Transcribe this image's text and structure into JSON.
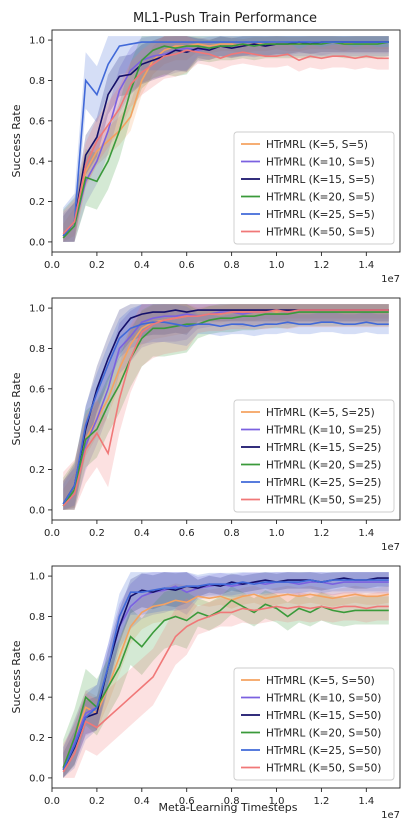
{
  "figure": {
    "title": "ML1-Push Train Performance",
    "xlabel": "Meta-Learning Timesteps"
  },
  "chart_data": [
    {
      "type": "line",
      "title": "ML1-Push Train Performance",
      "xlabel": "",
      "ylabel": "Success Rate",
      "x_exponent": "1e7",
      "xlim": [
        0,
        1.55
      ],
      "ylim": [
        -0.05,
        1.05
      ],
      "xticks": [
        "0.0",
        "0.2",
        "0.4",
        "0.6",
        "0.8",
        "1.0",
        "1.2",
        "1.4"
      ],
      "yticks": [
        "0.0",
        "0.2",
        "0.4",
        "0.6",
        "0.8",
        "1.0"
      ],
      "legend": "lower-right",
      "x": [
        0.05,
        0.1,
        0.15,
        0.2,
        0.25,
        0.3,
        0.35,
        0.4,
        0.45,
        0.5,
        0.55,
        0.6,
        0.65,
        0.7,
        0.75,
        0.8,
        0.85,
        0.9,
        0.95,
        1.0,
        1.05,
        1.1,
        1.15,
        1.2,
        1.25,
        1.3,
        1.35,
        1.4,
        1.45,
        1.5
      ],
      "series": [
        {
          "name": "HTrMRL (K=5, S=5)",
          "color": "#f4a261",
          "band": 0.05,
          "values": [
            0.02,
            0.1,
            0.35,
            0.45,
            0.5,
            0.55,
            0.62,
            0.8,
            0.9,
            0.95,
            0.97,
            0.97,
            0.98,
            0.97,
            0.98,
            0.98,
            0.97,
            0.98,
            0.98,
            0.99,
            0.98,
            0.98,
            0.99,
            0.99,
            0.99,
            0.98,
            0.99,
            0.99,
            0.99,
            0.99
          ]
        },
        {
          "name": "HTrMRL (K=10, S=5)",
          "color": "#7b61e0",
          "band": 0.08,
          "values": [
            0.03,
            0.08,
            0.3,
            0.4,
            0.55,
            0.75,
            0.85,
            0.9,
            0.92,
            0.93,
            0.95,
            0.96,
            0.95,
            0.96,
            0.97,
            0.97,
            0.98,
            0.97,
            0.98,
            0.98,
            0.98,
            0.99,
            0.99,
            0.98,
            0.99,
            0.99,
            0.99,
            0.99,
            0.99,
            0.99
          ]
        },
        {
          "name": "HTrMRL (K=15, S=5)",
          "color": "#14106a",
          "band": 0.07,
          "values": [
            0.03,
            0.1,
            0.43,
            0.52,
            0.73,
            0.82,
            0.83,
            0.88,
            0.9,
            0.92,
            0.95,
            0.94,
            0.96,
            0.95,
            0.97,
            0.96,
            0.97,
            0.98,
            0.97,
            0.98,
            0.98,
            0.99,
            0.98,
            0.99,
            0.99,
            0.99,
            0.99,
            0.99,
            0.99,
            0.99
          ]
        },
        {
          "name": "HTrMRL (K=20, S=5)",
          "color": "#3a9a3a",
          "band": 0.1,
          "values": [
            0.02,
            0.08,
            0.32,
            0.3,
            0.4,
            0.55,
            0.75,
            0.9,
            0.95,
            0.97,
            0.96,
            0.97,
            0.97,
            0.96,
            0.97,
            0.97,
            0.98,
            0.97,
            0.98,
            0.98,
            0.98,
            0.98,
            0.98,
            0.98,
            0.99,
            0.98,
            0.98,
            0.98,
            0.98,
            0.99
          ]
        },
        {
          "name": "HTrMRL (K=25, S=5)",
          "color": "#4169d8",
          "band": 0.1,
          "values": [
            0.03,
            0.1,
            0.8,
            0.73,
            0.88,
            0.97,
            0.98,
            0.99,
            0.99,
            0.99,
            0.99,
            0.99,
            0.99,
            0.99,
            0.99,
            0.99,
            0.99,
            0.99,
            0.99,
            0.99,
            0.99,
            0.99,
            0.99,
            0.99,
            0.99,
            0.99,
            0.99,
            0.99,
            0.99,
            0.99
          ]
        },
        {
          "name": "HTrMRL (K=50, S=5)",
          "color": "#f07878",
          "band": 0.08,
          "values": [
            0.04,
            0.1,
            0.38,
            0.5,
            0.58,
            0.66,
            0.78,
            0.84,
            0.88,
            0.92,
            0.93,
            0.95,
            0.94,
            0.93,
            0.91,
            0.93,
            0.94,
            0.93,
            0.92,
            0.92,
            0.93,
            0.9,
            0.92,
            0.91,
            0.92,
            0.92,
            0.91,
            0.92,
            0.91,
            0.91
          ]
        }
      ]
    },
    {
      "type": "line",
      "title": "",
      "xlabel": "",
      "ylabel": "Success Rate",
      "x_exponent": "1e7",
      "xlim": [
        0,
        1.55
      ],
      "ylim": [
        -0.05,
        1.05
      ],
      "xticks": [
        "0.0",
        "0.2",
        "0.4",
        "0.6",
        "0.8",
        "1.0",
        "1.2",
        "1.4"
      ],
      "yticks": [
        "0.0",
        "0.2",
        "0.4",
        "0.6",
        "0.8",
        "1.0"
      ],
      "legend": "lower-right",
      "x": [
        0.05,
        0.1,
        0.15,
        0.2,
        0.25,
        0.3,
        0.35,
        0.4,
        0.45,
        0.5,
        0.55,
        0.6,
        0.65,
        0.7,
        0.75,
        0.8,
        0.85,
        0.9,
        0.95,
        1.0,
        1.05,
        1.1,
        1.15,
        1.2,
        1.25,
        1.3,
        1.35,
        1.4,
        1.45,
        1.5
      ],
      "series": [
        {
          "name": "HTrMRL (K=5, S=25)",
          "color": "#f4a261",
          "band": 0.06,
          "values": [
            0.02,
            0.1,
            0.35,
            0.45,
            0.55,
            0.7,
            0.82,
            0.9,
            0.93,
            0.94,
            0.95,
            0.96,
            0.96,
            0.97,
            0.97,
            0.98,
            0.98,
            0.98,
            0.99,
            0.98,
            0.99,
            0.99,
            0.99,
            0.99,
            0.99,
            0.99,
            0.99,
            0.99,
            0.99,
            0.99
          ]
        },
        {
          "name": "HTrMRL (K=10, S=25)",
          "color": "#7b61e0",
          "band": 0.09,
          "values": [
            0.02,
            0.08,
            0.32,
            0.45,
            0.6,
            0.8,
            0.86,
            0.93,
            0.95,
            0.96,
            0.96,
            0.97,
            0.96,
            0.97,
            0.98,
            0.98,
            0.97,
            0.98,
            0.98,
            0.99,
            0.98,
            0.99,
            0.99,
            0.99,
            0.99,
            0.99,
            0.99,
            0.99,
            0.99,
            0.99
          ]
        },
        {
          "name": "HTrMRL (K=15, S=25)",
          "color": "#14106a",
          "band": 0.08,
          "values": [
            0.03,
            0.12,
            0.4,
            0.6,
            0.75,
            0.88,
            0.95,
            0.97,
            0.98,
            0.98,
            0.99,
            0.98,
            0.99,
            0.99,
            0.99,
            0.99,
            0.99,
            0.99,
            0.99,
            0.99,
            0.99,
            0.99,
            0.99,
            0.99,
            0.99,
            0.99,
            0.99,
            0.99,
            0.99,
            0.99
          ]
        },
        {
          "name": "HTrMRL (K=20, S=25)",
          "color": "#3a9a3a",
          "band": 0.1,
          "values": [
            0.02,
            0.1,
            0.35,
            0.4,
            0.52,
            0.62,
            0.75,
            0.85,
            0.9,
            0.9,
            0.91,
            0.92,
            0.92,
            0.94,
            0.95,
            0.95,
            0.96,
            0.96,
            0.97,
            0.97,
            0.97,
            0.98,
            0.98,
            0.98,
            0.98,
            0.98,
            0.98,
            0.98,
            0.98,
            0.98
          ]
        },
        {
          "name": "HTrMRL (K=25, S=25)",
          "color": "#4169d8",
          "band": 0.07,
          "values": [
            0.03,
            0.12,
            0.42,
            0.58,
            0.72,
            0.85,
            0.9,
            0.92,
            0.93,
            0.93,
            0.92,
            0.91,
            0.92,
            0.92,
            0.91,
            0.92,
            0.92,
            0.91,
            0.92,
            0.92,
            0.93,
            0.92,
            0.92,
            0.93,
            0.93,
            0.92,
            0.92,
            0.93,
            0.92,
            0.92
          ]
        },
        {
          "name": "HTrMRL (K=50, S=25)",
          "color": "#f07878",
          "band": 0.12,
          "values": [
            0.02,
            0.08,
            0.3,
            0.38,
            0.28,
            0.55,
            0.75,
            0.88,
            0.92,
            0.94,
            0.95,
            0.96,
            0.96,
            0.97,
            0.97,
            0.98,
            0.98,
            0.98,
            0.98,
            0.99,
            0.98,
            0.99,
            0.99,
            0.99,
            0.99,
            0.99,
            0.99,
            0.99,
            0.99,
            0.99
          ]
        }
      ]
    },
    {
      "type": "line",
      "title": "",
      "xlabel": "Meta-Learning Timesteps",
      "ylabel": "Success Rate",
      "x_exponent": "1e7",
      "xlim": [
        0,
        1.55
      ],
      "ylim": [
        -0.05,
        1.05
      ],
      "xticks": [
        "0.0",
        "0.2",
        "0.4",
        "0.6",
        "0.8",
        "1.0",
        "1.2",
        "1.4"
      ],
      "yticks": [
        "0.0",
        "0.2",
        "0.4",
        "0.6",
        "0.8",
        "1.0"
      ],
      "legend": "lower-right",
      "x": [
        0.05,
        0.1,
        0.15,
        0.2,
        0.25,
        0.3,
        0.35,
        0.4,
        0.45,
        0.5,
        0.55,
        0.6,
        0.65,
        0.7,
        0.75,
        0.8,
        0.85,
        0.9,
        0.95,
        1.0,
        1.05,
        1.1,
        1.15,
        1.2,
        1.25,
        1.3,
        1.35,
        1.4,
        1.45,
        1.5
      ],
      "series": [
        {
          "name": "HTrMRL (K=5, S=50)",
          "color": "#f4a261",
          "band": 0.06,
          "values": [
            0.05,
            0.2,
            0.35,
            0.32,
            0.45,
            0.6,
            0.75,
            0.82,
            0.85,
            0.86,
            0.88,
            0.87,
            0.9,
            0.89,
            0.9,
            0.88,
            0.9,
            0.91,
            0.89,
            0.9,
            0.91,
            0.9,
            0.91,
            0.9,
            0.89,
            0.9,
            0.91,
            0.9,
            0.9,
            0.91
          ]
        },
        {
          "name": "HTrMRL (K=10, S=50)",
          "color": "#7b61e0",
          "band": 0.08,
          "values": [
            0.04,
            0.18,
            0.32,
            0.35,
            0.55,
            0.75,
            0.85,
            0.9,
            0.92,
            0.93,
            0.95,
            0.92,
            0.94,
            0.95,
            0.96,
            0.95,
            0.96,
            0.97,
            0.96,
            0.97,
            0.97,
            0.96,
            0.97,
            0.97,
            0.96,
            0.97,
            0.97,
            0.97,
            0.97,
            0.97
          ]
        },
        {
          "name": "HTrMRL (K=15, S=50)",
          "color": "#14106a",
          "band": 0.06,
          "values": [
            0.04,
            0.15,
            0.3,
            0.32,
            0.55,
            0.75,
            0.9,
            0.93,
            0.92,
            0.94,
            0.93,
            0.95,
            0.94,
            0.96,
            0.95,
            0.97,
            0.96,
            0.97,
            0.98,
            0.97,
            0.98,
            0.98,
            0.98,
            0.97,
            0.98,
            0.99,
            0.98,
            0.98,
            0.99,
            0.99
          ]
        },
        {
          "name": "HTrMRL (K=20, S=50)",
          "color": "#3a9a3a",
          "band": 0.1,
          "values": [
            0.05,
            0.2,
            0.4,
            0.35,
            0.45,
            0.55,
            0.7,
            0.65,
            0.72,
            0.78,
            0.8,
            0.78,
            0.82,
            0.8,
            0.83,
            0.88,
            0.85,
            0.82,
            0.86,
            0.84,
            0.8,
            0.84,
            0.82,
            0.85,
            0.83,
            0.82,
            0.83,
            0.83,
            0.83,
            0.83
          ]
        },
        {
          "name": "HTrMRL (K=25, S=50)",
          "color": "#4169d8",
          "band": 0.08,
          "values": [
            0.04,
            0.16,
            0.3,
            0.35,
            0.55,
            0.8,
            0.92,
            0.92,
            0.93,
            0.94,
            0.94,
            0.95,
            0.95,
            0.96,
            0.96,
            0.96,
            0.97,
            0.96,
            0.97,
            0.97,
            0.97,
            0.97,
            0.98,
            0.97,
            0.98,
            0.98,
            0.98,
            0.98,
            0.98,
            0.98
          ]
        },
        {
          "name": "HTrMRL (K=50, S=50)",
          "color": "#f07878",
          "band": 0.1,
          "values": [
            0.03,
            0.12,
            0.28,
            0.25,
            0.3,
            0.35,
            0.4,
            0.45,
            0.5,
            0.6,
            0.7,
            0.75,
            0.78,
            0.8,
            0.82,
            0.82,
            0.84,
            0.83,
            0.84,
            0.85,
            0.84,
            0.85,
            0.84,
            0.85,
            0.84,
            0.85,
            0.85,
            0.84,
            0.85,
            0.85
          ]
        }
      ]
    }
  ]
}
